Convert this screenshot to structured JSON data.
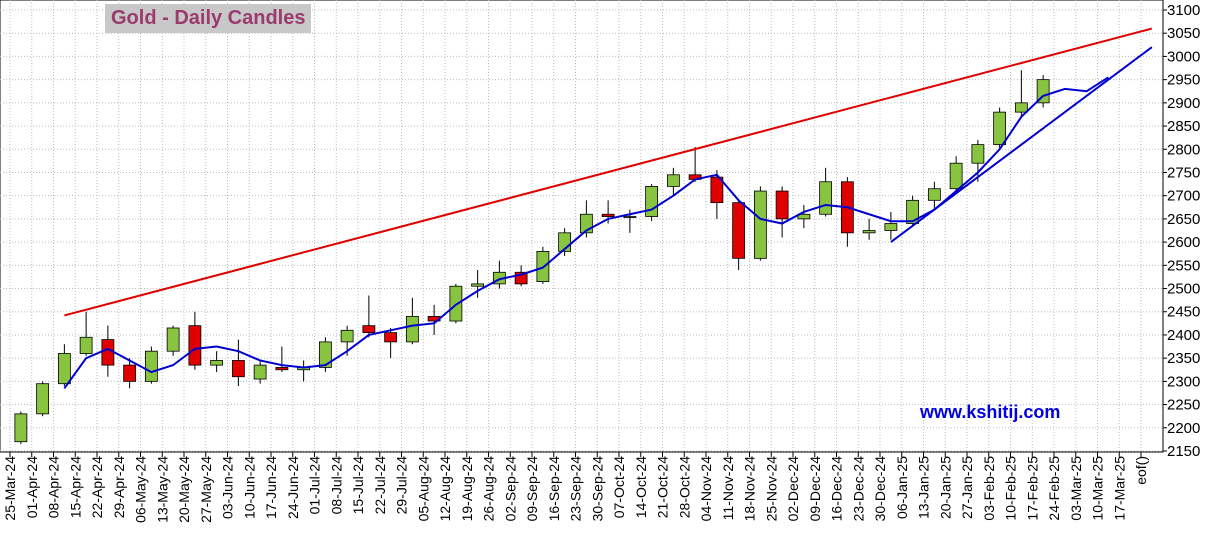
{
  "title": "Gold - Daily Candles",
  "watermark": "www.kshitij.com",
  "chart_data": {
    "type": "candlestick",
    "y_ticks": [
      2150,
      2200,
      2250,
      2300,
      2350,
      2400,
      2450,
      2500,
      2550,
      2600,
      2650,
      2700,
      2750,
      2800,
      2850,
      2900,
      2950,
      3000,
      3050,
      3100
    ],
    "ylim": [
      2150,
      3100
    ],
    "x_ticks": [
      "25-Mar-24",
      "01-Apr-24",
      "08-Apr-24",
      "15-Apr-24",
      "22-Apr-24",
      "29-Apr-24",
      "06-May-24",
      "13-May-24",
      "20-May-24",
      "27-May-24",
      "03-Jun-24",
      "10-Jun-24",
      "17-Jun-24",
      "24-Jun-24",
      "01-Jul-24",
      "08-Jul-24",
      "15-Jul-24",
      "22-Jul-24",
      "29-Jul-24",
      "05-Aug-24",
      "12-Aug-24",
      "19-Aug-24",
      "26-Aug-24",
      "02-Sep-24",
      "09-Sep-24",
      "16-Sep-24",
      "23-Sep-24",
      "30-Sep-24",
      "07-Oct-24",
      "14-Oct-24",
      "21-Oct-24",
      "28-Oct-24",
      "04-Nov-24",
      "11-Nov-24",
      "18-Nov-24",
      "25-Nov-24",
      "02-Dec-24",
      "09-Dec-24",
      "16-Dec-24",
      "23-Dec-24",
      "30-Dec-24",
      "06-Jan-25",
      "13-Jan-25",
      "20-Jan-25",
      "27-Jan-25",
      "03-Feb-25",
      "10-Feb-25",
      "17-Feb-25",
      "24-Feb-25",
      "03-Mar-25",
      "10-Mar-25",
      "17-Mar-25",
      "eof()"
    ],
    "grid": true,
    "weekly_candles": [
      {
        "week": "25-Mar-24",
        "open": 2170,
        "high": 2235,
        "low": 2165,
        "close": 2230
      },
      {
        "week": "01-Apr-24",
        "open": 2230,
        "high": 2300,
        "low": 2225,
        "close": 2295
      },
      {
        "week": "08-Apr-24",
        "open": 2295,
        "high": 2380,
        "low": 2290,
        "close": 2360
      },
      {
        "week": "15-Apr-24",
        "open": 2360,
        "high": 2450,
        "low": 2355,
        "close": 2395
      },
      {
        "week": "22-Apr-24",
        "open": 2390,
        "high": 2420,
        "low": 2310,
        "close": 2335
      },
      {
        "week": "29-Apr-24",
        "open": 2335,
        "high": 2350,
        "low": 2285,
        "close": 2300
      },
      {
        "week": "06-May-24",
        "open": 2300,
        "high": 2375,
        "low": 2295,
        "close": 2365
      },
      {
        "week": "13-May-24",
        "open": 2365,
        "high": 2420,
        "low": 2355,
        "close": 2415
      },
      {
        "week": "20-May-24",
        "open": 2420,
        "high": 2450,
        "low": 2325,
        "close": 2335
      },
      {
        "week": "27-May-24",
        "open": 2335,
        "high": 2365,
        "low": 2320,
        "close": 2345
      },
      {
        "week": "03-Jun-24",
        "open": 2345,
        "high": 2390,
        "low": 2290,
        "close": 2310
      },
      {
        "week": "10-Jun-24",
        "open": 2305,
        "high": 2345,
        "low": 2295,
        "close": 2335
      },
      {
        "week": "17-Jun-24",
        "open": 2330,
        "high": 2375,
        "low": 2320,
        "close": 2325
      },
      {
        "week": "24-Jun-24",
        "open": 2325,
        "high": 2345,
        "low": 2300,
        "close": 2330
      },
      {
        "week": "01-Jul-24",
        "open": 2330,
        "high": 2395,
        "low": 2320,
        "close": 2385
      },
      {
        "week": "08-Jul-24",
        "open": 2385,
        "high": 2420,
        "low": 2355,
        "close": 2410
      },
      {
        "week": "15-Jul-24",
        "open": 2420,
        "high": 2485,
        "low": 2395,
        "close": 2405
      },
      {
        "week": "22-Jul-24",
        "open": 2405,
        "high": 2415,
        "low": 2350,
        "close": 2385
      },
      {
        "week": "29-Jul-24",
        "open": 2385,
        "high": 2480,
        "low": 2380,
        "close": 2440
      },
      {
        "week": "05-Aug-24",
        "open": 2440,
        "high": 2465,
        "low": 2400,
        "close": 2430
      },
      {
        "week": "12-Aug-24",
        "open": 2430,
        "high": 2510,
        "low": 2425,
        "close": 2505
      },
      {
        "week": "19-Aug-24",
        "open": 2505,
        "high": 2540,
        "low": 2480,
        "close": 2510
      },
      {
        "week": "26-Aug-24",
        "open": 2510,
        "high": 2560,
        "low": 2500,
        "close": 2535
      },
      {
        "week": "02-Sep-24",
        "open": 2535,
        "high": 2550,
        "low": 2505,
        "close": 2510
      },
      {
        "week": "09-Sep-24",
        "open": 2515,
        "high": 2590,
        "low": 2510,
        "close": 2580
      },
      {
        "week": "16-Sep-24",
        "open": 2580,
        "high": 2630,
        "low": 2570,
        "close": 2620
      },
      {
        "week": "23-Sep-24",
        "open": 2620,
        "high": 2690,
        "low": 2610,
        "close": 2660
      },
      {
        "week": "30-Sep-24",
        "open": 2660,
        "high": 2690,
        "low": 2640,
        "close": 2655
      },
      {
        "week": "07-Oct-24",
        "open": 2655,
        "high": 2670,
        "low": 2620,
        "close": 2655
      },
      {
        "week": "14-Oct-24",
        "open": 2655,
        "high": 2725,
        "low": 2645,
        "close": 2720
      },
      {
        "week": "21-Oct-24",
        "open": 2720,
        "high": 2760,
        "low": 2700,
        "close": 2745
      },
      {
        "week": "28-Oct-24",
        "open": 2745,
        "high": 2805,
        "low": 2730,
        "close": 2735
      },
      {
        "week": "04-Nov-24",
        "open": 2740,
        "high": 2755,
        "low": 2650,
        "close": 2685
      },
      {
        "week": "11-Nov-24",
        "open": 2685,
        "high": 2690,
        "low": 2540,
        "close": 2565
      },
      {
        "week": "18-Nov-24",
        "open": 2565,
        "high": 2720,
        "low": 2560,
        "close": 2710
      },
      {
        "week": "25-Nov-24",
        "open": 2710,
        "high": 2720,
        "low": 2610,
        "close": 2650
      },
      {
        "week": "02-Dec-24",
        "open": 2650,
        "high": 2680,
        "low": 2630,
        "close": 2660
      },
      {
        "week": "09-Dec-24",
        "open": 2660,
        "high": 2760,
        "low": 2655,
        "close": 2730
      },
      {
        "week": "16-Dec-24",
        "open": 2730,
        "high": 2740,
        "low": 2590,
        "close": 2620
      },
      {
        "week": "23-Dec-24",
        "open": 2620,
        "high": 2650,
        "low": 2605,
        "close": 2625
      },
      {
        "week": "30-Dec-24",
        "open": 2625,
        "high": 2665,
        "low": 2605,
        "close": 2640
      },
      {
        "week": "06-Jan-25",
        "open": 2640,
        "high": 2700,
        "low": 2635,
        "close": 2690
      },
      {
        "week": "13-Jan-25",
        "open": 2690,
        "high": 2730,
        "low": 2670,
        "close": 2715
      },
      {
        "week": "20-Jan-25",
        "open": 2715,
        "high": 2785,
        "low": 2705,
        "close": 2770
      },
      {
        "week": "27-Jan-25",
        "open": 2770,
        "high": 2820,
        "low": 2730,
        "close": 2810
      },
      {
        "week": "03-Feb-25",
        "open": 2810,
        "high": 2890,
        "low": 2800,
        "close": 2880
      },
      {
        "week": "10-Feb-25",
        "open": 2880,
        "high": 2970,
        "low": 2870,
        "close": 2900
      },
      {
        "week": "17-Feb-25",
        "open": 2900,
        "high": 2960,
        "low": 2890,
        "close": 2950
      }
    ],
    "moving_average": [
      {
        "x": "08-Apr-24",
        "y": 2285
      },
      {
        "x": "15-Apr-24",
        "y": 2350
      },
      {
        "x": "22-Apr-24",
        "y": 2370
      },
      {
        "x": "29-Apr-24",
        "y": 2345
      },
      {
        "x": "06-May-24",
        "y": 2320
      },
      {
        "x": "13-May-24",
        "y": 2335
      },
      {
        "x": "20-May-24",
        "y": 2370
      },
      {
        "x": "27-May-24",
        "y": 2375
      },
      {
        "x": "03-Jun-24",
        "y": 2365
      },
      {
        "x": "10-Jun-24",
        "y": 2345
      },
      {
        "x": "17-Jun-24",
        "y": 2335
      },
      {
        "x": "24-Jun-24",
        "y": 2330
      },
      {
        "x": "01-Jul-24",
        "y": 2335
      },
      {
        "x": "08-Jul-24",
        "y": 2365
      },
      {
        "x": "15-Jul-24",
        "y": 2400
      },
      {
        "x": "22-Jul-24",
        "y": 2410
      },
      {
        "x": "29-Jul-24",
        "y": 2420
      },
      {
        "x": "05-Aug-24",
        "y": 2425
      },
      {
        "x": "12-Aug-24",
        "y": 2465
      },
      {
        "x": "19-Aug-24",
        "y": 2495
      },
      {
        "x": "26-Aug-24",
        "y": 2520
      },
      {
        "x": "02-Sep-24",
        "y": 2530
      },
      {
        "x": "09-Sep-24",
        "y": 2545
      },
      {
        "x": "16-Sep-24",
        "y": 2585
      },
      {
        "x": "23-Sep-24",
        "y": 2625
      },
      {
        "x": "30-Sep-24",
        "y": 2650
      },
      {
        "x": "07-Oct-24",
        "y": 2660
      },
      {
        "x": "14-Oct-24",
        "y": 2670
      },
      {
        "x": "21-Oct-24",
        "y": 2700
      },
      {
        "x": "28-Oct-24",
        "y": 2735
      },
      {
        "x": "04-Nov-24",
        "y": 2745
      },
      {
        "x": "11-Nov-24",
        "y": 2690
      },
      {
        "x": "18-Nov-24",
        "y": 2650
      },
      {
        "x": "25-Nov-24",
        "y": 2640
      },
      {
        "x": "02-Dec-24",
        "y": 2665
      },
      {
        "x": "09-Dec-24",
        "y": 2680
      },
      {
        "x": "16-Dec-24",
        "y": 2675
      },
      {
        "x": "23-Dec-24",
        "y": 2660
      },
      {
        "x": "30-Dec-24",
        "y": 2645
      },
      {
        "x": "06-Jan-25",
        "y": 2645
      },
      {
        "x": "13-Jan-25",
        "y": 2670
      },
      {
        "x": "20-Jan-25",
        "y": 2710
      },
      {
        "x": "27-Jan-25",
        "y": 2750
      },
      {
        "x": "03-Feb-25",
        "y": 2800
      },
      {
        "x": "10-Feb-25",
        "y": 2870
      },
      {
        "x": "17-Feb-25",
        "y": 2915
      },
      {
        "x": "24-Feb-25",
        "y": 2930
      },
      {
        "x": "03-Mar-25",
        "y": 2925
      },
      {
        "x": "10-Mar-25",
        "y": 2955
      }
    ],
    "trendlines": [
      {
        "color": "#e00000",
        "from": {
          "x": "08-Apr-24",
          "y": 2442
        },
        "to": {
          "x": "eof()",
          "y": 3060
        }
      },
      {
        "color": "#0000d0",
        "from": {
          "x": "30-Dec-24",
          "y": 2600
        },
        "to": {
          "x": "eof()",
          "y": 3020
        }
      }
    ],
    "colors": {
      "up": "#88c440",
      "down": "#e00000",
      "ma": "#0000d0",
      "resistance": "#e00000"
    }
  }
}
